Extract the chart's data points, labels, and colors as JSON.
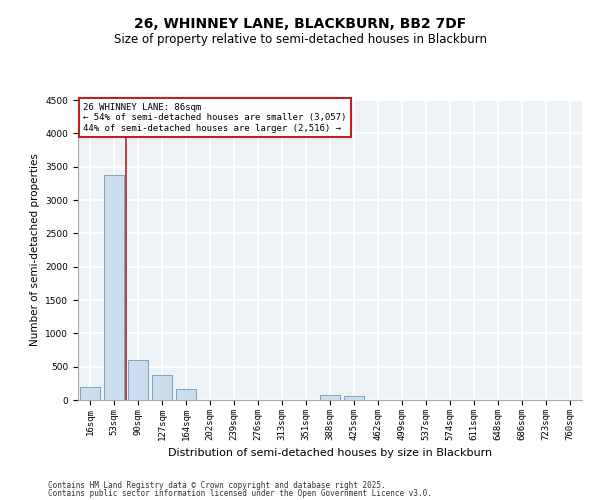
{
  "title1": "26, WHINNEY LANE, BLACKBURN, BB2 7DF",
  "title2": "Size of property relative to semi-detached houses in Blackburn",
  "xlabel": "Distribution of semi-detached houses by size in Blackburn",
  "ylabel": "Number of semi-detached properties",
  "bar_color": "#ccdded",
  "bar_edge_color": "#6699bb",
  "categories": [
    "16sqm",
    "53sqm",
    "90sqm",
    "127sqm",
    "164sqm",
    "202sqm",
    "239sqm",
    "276sqm",
    "313sqm",
    "351sqm",
    "388sqm",
    "425sqm",
    "462sqm",
    "499sqm",
    "537sqm",
    "574sqm",
    "611sqm",
    "648sqm",
    "686sqm",
    "723sqm",
    "760sqm"
  ],
  "values": [
    200,
    3380,
    600,
    380,
    160,
    0,
    0,
    0,
    0,
    0,
    80,
    60,
    0,
    0,
    0,
    0,
    0,
    0,
    0,
    0,
    0
  ],
  "ylim": [
    0,
    4500
  ],
  "yticks": [
    0,
    500,
    1000,
    1500,
    2000,
    2500,
    3000,
    3500,
    4000,
    4500
  ],
  "vline_x": 1.5,
  "vline_color": "#bb2222",
  "annotation_title": "26 WHINNEY LANE: 86sqm",
  "annotation_line1": "← 54% of semi-detached houses are smaller (3,057)",
  "annotation_line2": "44% of semi-detached houses are larger (2,516) →",
  "annotation_box_color": "#ffffff",
  "annotation_box_edge": "#bb2222",
  "footer1": "Contains HM Land Registry data © Crown copyright and database right 2025.",
  "footer2": "Contains public sector information licensed under the Open Government Licence v3.0.",
  "bg_color": "#edf2f7",
  "grid_color": "#ffffff",
  "title1_fontsize": 10,
  "title2_fontsize": 8.5,
  "tick_fontsize": 6.5,
  "ylabel_fontsize": 7.5,
  "xlabel_fontsize": 8
}
